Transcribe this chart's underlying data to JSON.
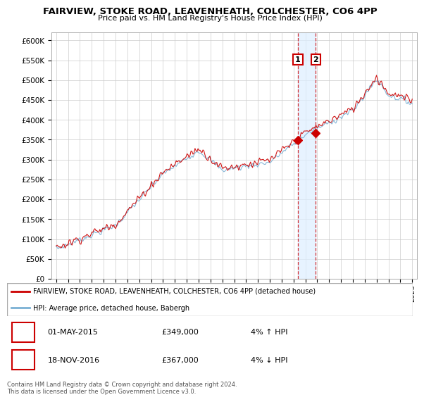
{
  "title": "FAIRVIEW, STOKE ROAD, LEAVENHEATH, COLCHESTER, CO6 4PP",
  "subtitle": "Price paid vs. HM Land Registry's House Price Index (HPI)",
  "ylim": [
    0,
    620000
  ],
  "yticks": [
    0,
    50000,
    100000,
    150000,
    200000,
    250000,
    300000,
    350000,
    400000,
    450000,
    500000,
    550000,
    600000
  ],
  "ytick_labels": [
    "£0",
    "£50K",
    "£100K",
    "£150K",
    "£200K",
    "£250K",
    "£300K",
    "£350K",
    "£400K",
    "£450K",
    "£500K",
    "£550K",
    "£600K"
  ],
  "price_paid_color": "#cc0000",
  "hpi_color": "#7ab0d4",
  "shade_color": "#ddeeff",
  "sale1_x": 2015.37,
  "sale1_y": 349000,
  "sale2_x": 2016.88,
  "sale2_y": 367000,
  "legend_price_paid": "FAIRVIEW, STOKE ROAD, LEAVENHEATH, COLCHESTER, CO6 4PP (detached house)",
  "legend_hpi": "HPI: Average price, detached house, Babergh",
  "table_row1": [
    "1",
    "01-MAY-2015",
    "£349,000",
    "4% ↑ HPI"
  ],
  "table_row2": [
    "2",
    "18-NOV-2016",
    "£367,000",
    "4% ↓ HPI"
  ],
  "footnote": "Contains HM Land Registry data © Crown copyright and database right 2024.\nThis data is licensed under the Open Government Licence v3.0.",
  "background_color": "#ffffff",
  "grid_color": "#cccccc",
  "xlim_start": 1994.6,
  "xlim_end": 2025.4
}
